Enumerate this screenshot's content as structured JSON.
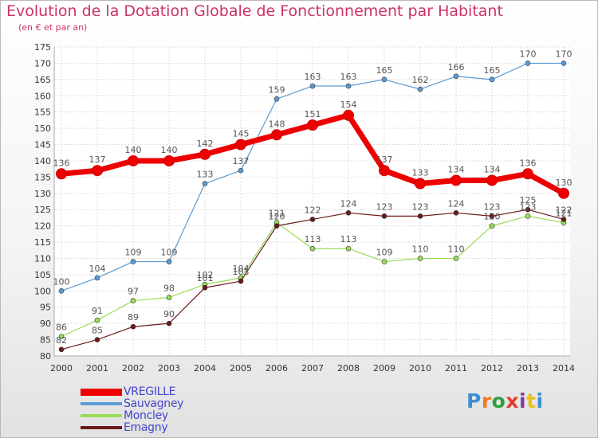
{
  "title": "Evolution de la Dotation Globale de Fonctionnement par Habitant",
  "subtitle": "(en € et par an)",
  "logo": {
    "text": "Proxiti",
    "colors": [
      "#3b8fd6",
      "#f07c1e",
      "#2e9e3e",
      "#e23a2a",
      "#7a3fa0",
      "#e6c21a",
      "#3b8fd6"
    ]
  },
  "colors": {
    "VREGILLE": "#ee0000",
    "Sauvagney": "#5b9bd5",
    "Moncley": "#99dd55",
    "Emagny": "#6b1a1a",
    "grid": "#dddddd",
    "axis_text": "#333333",
    "value_text": "#555555",
    "legend_text": "#4444cc"
  },
  "chart_data": {
    "type": "line",
    "title": "Evolution de la Dotation Globale de Fonctionnement par Habitant",
    "subtitle": "(en € et par an)",
    "x": [
      "2000",
      "2001",
      "2002",
      "2003",
      "2004",
      "2005",
      "2006",
      "2007",
      "2008",
      "2009",
      "2010",
      "2011",
      "2012",
      "2013",
      "2014"
    ],
    "ylim": [
      80,
      175
    ],
    "yticks": [
      80,
      85,
      90,
      95,
      100,
      105,
      110,
      115,
      120,
      125,
      130,
      135,
      140,
      145,
      150,
      155,
      160,
      165,
      170,
      175
    ],
    "grid": true,
    "legend_position": "bottom-left",
    "series": [
      {
        "name": "VREGILLE",
        "values": [
          136,
          137,
          140,
          140,
          142,
          145,
          148,
          151,
          154,
          137,
          133,
          134,
          134,
          136,
          130
        ]
      },
      {
        "name": "Sauvagney",
        "values": [
          100,
          104,
          109,
          109,
          133,
          137,
          159,
          163,
          163,
          165,
          162,
          166,
          165,
          170,
          170
        ]
      },
      {
        "name": "Moncley",
        "values": [
          86,
          91,
          97,
          98,
          102,
          104,
          121,
          113,
          113,
          109,
          110,
          110,
          120,
          123,
          121
        ]
      },
      {
        "name": "Emagny",
        "values": [
          82,
          85,
          89,
          90,
          101,
          103,
          120,
          122,
          124,
          123,
          123,
          124,
          123,
          125,
          122
        ]
      }
    ]
  }
}
